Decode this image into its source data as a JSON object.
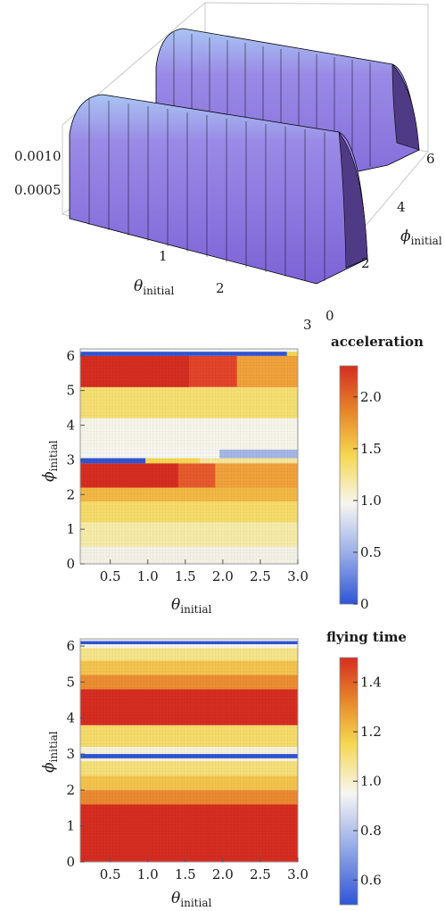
{
  "colors": {
    "surface_light": "#9bb4f0",
    "surface_mid": "#8f7be0",
    "surface_dark": "#5a3f9c",
    "box": "#c8c8c8",
    "map_red": "#d62d22",
    "map_orange": "#e88a2a",
    "map_yellow": "#f5d852",
    "map_white": "#f6f6f2",
    "map_blue": "#2f55d6"
  },
  "chart_data": [
    {
      "type": "surface3d",
      "title": "",
      "z_ticks": [
        "0.0005",
        "0.0010"
      ],
      "x_ticks": [
        "1",
        "2",
        "3"
      ],
      "y_ticks": [
        "0",
        "2",
        "4",
        "6"
      ],
      "xlabel_symbol": "θ",
      "xlabel_sub": "initial",
      "ylabel_symbol": "ϕ",
      "ylabel_sub": "initial",
      "x_range": [
        0,
        3
      ],
      "y_range": [
        0,
        6.28
      ],
      "z_range": [
        0,
        0.0012
      ],
      "ridges": [
        {
          "phi_center": 1.57,
          "z_peak": 0.0012
        },
        {
          "phi_center": 4.71,
          "z_peak": 0.0012
        }
      ]
    },
    {
      "type": "heatmap",
      "colorbar_title": "acceleration",
      "colorbar_ticks": [
        "0",
        "0.5",
        "1.0",
        "1.5",
        "2.0"
      ],
      "colorbar_range": [
        0,
        2.3
      ],
      "x_ticks": [
        "0.5",
        "1.0",
        "1.5",
        "2.0",
        "2.5",
        "3.0"
      ],
      "y_ticks": [
        "0",
        "1",
        "2",
        "3",
        "4",
        "5",
        "6"
      ],
      "x_range": [
        0.1,
        3.0
      ],
      "y_range": [
        0,
        6.2
      ],
      "xlabel_symbol": "θ",
      "xlabel_sub": "initial",
      "ylabel_symbol": "ϕ",
      "ylabel_sub": "initial"
    },
    {
      "type": "heatmap",
      "colorbar_title": "flying time",
      "colorbar_ticks": [
        "0.6",
        "0.8",
        "1.0",
        "1.2",
        "1.4"
      ],
      "colorbar_range": [
        0.5,
        1.5
      ],
      "x_ticks": [
        "0.5",
        "1.0",
        "1.5",
        "2.0",
        "2.5",
        "3.0"
      ],
      "y_ticks": [
        "0",
        "1",
        "2",
        "3",
        "4",
        "5",
        "6"
      ],
      "x_range": [
        0.1,
        3.0
      ],
      "y_range": [
        0,
        6.2
      ],
      "xlabel_symbol": "θ",
      "xlabel_sub": "initial",
      "ylabel_symbol": "ϕ",
      "ylabel_sub": "initial"
    }
  ]
}
